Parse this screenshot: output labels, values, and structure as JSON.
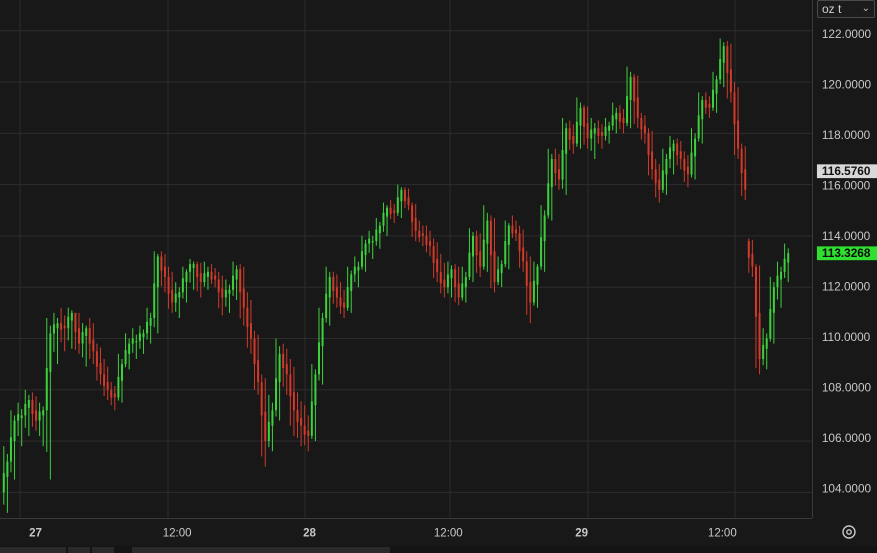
{
  "unit_selector": {
    "label": "oz t",
    "icon": "chevron-down-icon"
  },
  "settings": {
    "icon": "gear-icon"
  },
  "colors": {
    "up": "#3cd23c",
    "down": "#d23a2a",
    "grid": "#2c2c2c",
    "current_price_bg": "#2fe02f",
    "marker_bg": "#d8d8d8"
  },
  "chart_data": {
    "type": "candlestick",
    "ylim": [
      103.0,
      123.2
    ],
    "y_ticks": [
      "104.0000",
      "106.0000",
      "108.0000",
      "110.0000",
      "112.0000",
      "114.0000",
      "116.0000",
      "118.0000",
      "120.0000",
      "122.0000"
    ],
    "x_ticks": [
      "27",
      "12:00",
      "28",
      "12:00",
      "29",
      "12:00"
    ],
    "price_labels": {
      "marker": "116.5760",
      "marker_value": 116.576,
      "current": "113.3268",
      "current_value": 113.3268
    },
    "ohlc": [
      [
        104.0,
        105.8,
        103.2,
        105.2
      ],
      [
        105.2,
        107.2,
        104.5,
        106.8
      ],
      [
        106.8,
        107.5,
        105.8,
        107.0
      ],
      [
        107.0,
        108.0,
        106.2,
        107.6
      ],
      [
        107.6,
        107.9,
        106.4,
        106.8
      ],
      [
        106.8,
        107.5,
        105.8,
        107.2
      ],
      [
        107.2,
        110.8,
        104.5,
        110.2
      ],
      [
        110.2,
        111.0,
        109.0,
        110.6
      ],
      [
        110.6,
        111.2,
        109.5,
        110.4
      ],
      [
        110.4,
        111.2,
        109.6,
        111.0
      ],
      [
        111.0,
        111.0,
        109.4,
        109.8
      ],
      [
        109.8,
        110.6,
        108.9,
        110.4
      ],
      [
        110.4,
        110.8,
        109.0,
        109.5
      ],
      [
        109.5,
        109.8,
        108.2,
        108.6
      ],
      [
        108.6,
        109.2,
        107.6,
        108.0
      ],
      [
        108.0,
        108.3,
        107.2,
        107.7
      ],
      [
        107.7,
        109.4,
        107.5,
        109.0
      ],
      [
        109.0,
        110.2,
        108.8,
        109.8
      ],
      [
        109.8,
        110.4,
        109.2,
        109.9
      ],
      [
        109.9,
        110.5,
        109.4,
        110.2
      ],
      [
        110.2,
        111.2,
        109.8,
        110.8
      ],
      [
        110.8,
        113.4,
        110.2,
        113.2
      ],
      [
        113.2,
        113.4,
        111.8,
        112.4
      ],
      [
        112.4,
        112.8,
        111.0,
        111.4
      ],
      [
        111.4,
        112.2,
        110.8,
        111.8
      ],
      [
        111.8,
        112.8,
        111.4,
        112.6
      ],
      [
        112.6,
        113.1,
        111.9,
        112.9
      ],
      [
        112.9,
        113.0,
        111.6,
        112.2
      ],
      [
        112.2,
        113.0,
        111.9,
        112.6
      ],
      [
        112.6,
        112.9,
        112.0,
        112.3
      ],
      [
        112.3,
        112.6,
        110.9,
        111.6
      ],
      [
        111.6,
        112.3,
        111.0,
        111.9
      ],
      [
        111.9,
        113.0,
        111.5,
        112.7
      ],
      [
        112.7,
        112.9,
        110.5,
        111.2
      ],
      [
        111.2,
        111.8,
        109.4,
        110.0
      ],
      [
        110.0,
        110.3,
        107.8,
        108.3
      ],
      [
        108.3,
        108.6,
        105.0,
        106.0
      ],
      [
        106.0,
        107.8,
        105.6,
        107.2
      ],
      [
        107.2,
        110.0,
        106.8,
        109.4
      ],
      [
        109.4,
        109.8,
        107.8,
        108.6
      ],
      [
        108.6,
        109.2,
        106.2,
        107.2
      ],
      [
        107.2,
        107.9,
        105.8,
        106.6
      ],
      [
        106.6,
        107.4,
        105.6,
        106.2
      ],
      [
        106.2,
        109.0,
        106.0,
        108.6
      ],
      [
        108.6,
        111.2,
        108.2,
        110.8
      ],
      [
        110.8,
        112.8,
        110.5,
        112.4
      ],
      [
        112.4,
        112.6,
        111.2,
        111.6
      ],
      [
        111.6,
        112.2,
        110.8,
        111.2
      ],
      [
        111.2,
        112.8,
        111.0,
        112.5
      ],
      [
        112.5,
        113.2,
        112.0,
        112.8
      ],
      [
        112.8,
        114.0,
        112.6,
        113.7
      ],
      [
        113.7,
        114.2,
        113.1,
        113.8
      ],
      [
        113.8,
        114.7,
        113.5,
        114.4
      ],
      [
        114.4,
        115.3,
        114.0,
        115.1
      ],
      [
        115.1,
        115.4,
        114.5,
        114.9
      ],
      [
        114.9,
        116.0,
        114.7,
        115.8
      ],
      [
        115.8,
        115.9,
        115.0,
        115.2
      ],
      [
        115.2,
        115.3,
        113.8,
        114.2
      ],
      [
        114.2,
        114.6,
        113.6,
        114.0
      ],
      [
        114.0,
        114.4,
        113.2,
        113.6
      ],
      [
        113.6,
        113.9,
        112.2,
        112.6
      ],
      [
        112.6,
        113.3,
        111.6,
        112.0
      ],
      [
        112.0,
        113.0,
        111.6,
        112.7
      ],
      [
        112.7,
        112.9,
        111.3,
        111.6
      ],
      [
        111.6,
        112.8,
        111.4,
        112.4
      ],
      [
        112.4,
        114.3,
        112.2,
        114.0
      ],
      [
        114.0,
        114.2,
        112.4,
        112.8
      ],
      [
        112.8,
        115.2,
        112.6,
        114.6
      ],
      [
        114.6,
        114.8,
        111.8,
        112.2
      ],
      [
        112.2,
        113.2,
        112.0,
        112.9
      ],
      [
        112.9,
        114.6,
        112.7,
        114.4
      ],
      [
        114.4,
        114.8,
        113.8,
        114.1
      ],
      [
        114.1,
        114.4,
        112.6,
        113.0
      ],
      [
        113.0,
        113.4,
        110.6,
        111.4
      ],
      [
        111.4,
        113.0,
        111.2,
        112.8
      ],
      [
        112.8,
        115.2,
        112.6,
        114.8
      ],
      [
        114.8,
        117.4,
        114.6,
        117.0
      ],
      [
        117.0,
        117.4,
        115.8,
        116.2
      ],
      [
        116.2,
        118.6,
        115.6,
        118.2
      ],
      [
        118.2,
        118.5,
        117.2,
        117.6
      ],
      [
        117.6,
        119.4,
        117.4,
        119.0
      ],
      [
        119.0,
        119.1,
        117.4,
        117.8
      ],
      [
        117.8,
        118.6,
        117.0,
        118.2
      ],
      [
        118.2,
        118.5,
        117.4,
        117.9
      ],
      [
        117.9,
        118.6,
        117.6,
        118.3
      ],
      [
        118.3,
        119.2,
        118.0,
        118.8
      ],
      [
        118.8,
        119.1,
        118.0,
        118.4
      ],
      [
        118.4,
        120.6,
        118.2,
        120.2
      ],
      [
        120.2,
        120.3,
        118.2,
        118.6
      ],
      [
        118.6,
        118.8,
        117.6,
        118.0
      ],
      [
        118.0,
        118.2,
        116.2,
        116.6
      ],
      [
        116.6,
        117.0,
        115.3,
        115.8
      ],
      [
        115.8,
        117.4,
        115.6,
        117.0
      ],
      [
        117.0,
        117.9,
        116.4,
        117.6
      ],
      [
        117.6,
        117.8,
        116.6,
        117.0
      ],
      [
        117.0,
        117.3,
        115.9,
        116.4
      ],
      [
        116.4,
        118.2,
        116.2,
        117.8
      ],
      [
        117.8,
        119.6,
        117.6,
        119.3
      ],
      [
        119.3,
        119.6,
        118.6,
        119.0
      ],
      [
        119.0,
        120.4,
        118.8,
        120.1
      ],
      [
        120.1,
        121.7,
        119.8,
        121.4
      ],
      [
        121.4,
        121.6,
        119.2,
        119.6
      ],
      [
        119.6,
        120.0,
        117.0,
        117.4
      ],
      [
        117.4,
        117.6,
        115.4,
        115.8
      ],
      [
        113.8,
        113.9,
        112.4,
        112.8
      ],
      [
        112.8,
        112.9,
        108.6,
        109.2
      ],
      [
        109.2,
        110.4,
        108.8,
        110.0
      ],
      [
        110.0,
        112.4,
        109.8,
        112.0
      ],
      [
        112.0,
        113.0,
        111.2,
        112.6
      ],
      [
        112.6,
        113.7,
        112.2,
        113.3268
      ]
    ]
  }
}
